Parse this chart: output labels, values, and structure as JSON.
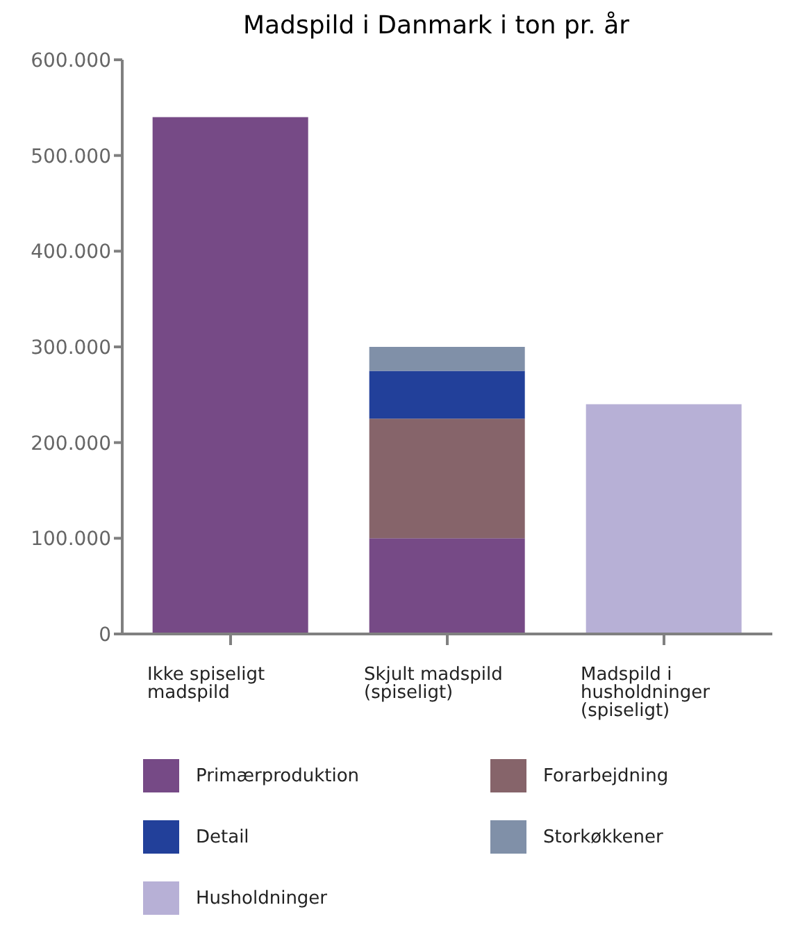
{
  "chart_data": {
    "type": "bar",
    "title": "Madspild i Danmark i ton pr. år",
    "categories": [
      "Ikke spiseligt madspild",
      "Skjult madspild (spiseligt)",
      "Madspild i husholdninger (spiseligt)"
    ],
    "stacked": true,
    "series": [
      {
        "name": "Primærproduktion",
        "color": "#764a86",
        "values": [
          540000,
          100000,
          null
        ]
      },
      {
        "name": "Forarbejdning",
        "color": "#86646a",
        "values": [
          null,
          125000,
          null
        ]
      },
      {
        "name": "Detail",
        "color": "#22409a",
        "values": [
          null,
          50000,
          null
        ]
      },
      {
        "name": "Storkøkkener",
        "color": "#8090a8",
        "values": [
          null,
          25000,
          null
        ]
      },
      {
        "name": "Husholdninger",
        "color": "#b7b0d6",
        "values": [
          null,
          null,
          240000
        ]
      }
    ],
    "ylim": [
      0,
      600000
    ],
    "yticks": [
      {
        "value": 0,
        "label": "0"
      },
      {
        "value": 100000,
        "label": "100.000"
      },
      {
        "value": 200000,
        "label": "200.000"
      },
      {
        "value": 300000,
        "label": "300.000"
      },
      {
        "value": 400000,
        "label": "400.000"
      },
      {
        "value": 500000,
        "label": "500.000"
      },
      {
        "value": 600000,
        "label": "600.000"
      }
    ],
    "grid": false,
    "legend": "bottom"
  }
}
